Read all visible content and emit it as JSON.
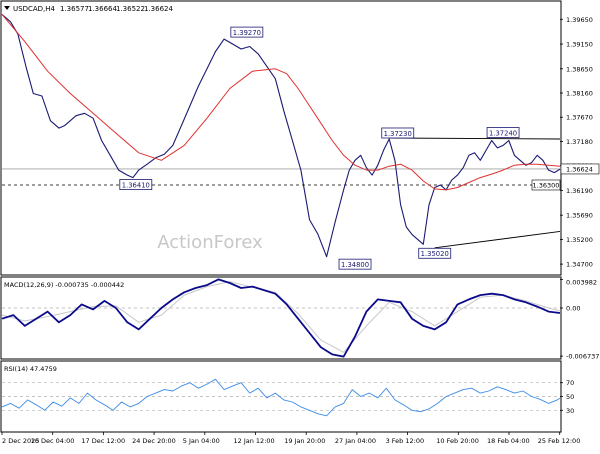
{
  "symbol_header": {
    "symbol": "USDCAD,H4",
    "open": "1.36577",
    "high": "1.36664",
    "low": "1.36522",
    "close": "1.36624"
  },
  "watermark": "ActionForex",
  "colors": {
    "price_line": "#1a1a73",
    "moving_average": "#e03030",
    "trendline": "#000000",
    "macd_line": "#0a0a8c",
    "macd_signal": "#c8c8c8",
    "rsi_line": "#3c8ce6",
    "current_price_line": "#a0a0a0",
    "support_line": "#000000",
    "label_box_border": "#1a1a73"
  },
  "chart_data": [
    {
      "type": "line",
      "panel": "price",
      "symbol": "USDCAD",
      "timeframe": "H4",
      "ylim": [
        1.345,
        1.4
      ],
      "y_ticks": [
        "1.39650",
        "1.39150",
        "1.38650",
        "1.38160",
        "1.37670",
        "1.37180",
        "1.36690",
        "1.36190",
        "1.35690",
        "1.35200",
        "1.34700"
      ],
      "current_price": "1.36624",
      "support_level": "1.36300",
      "x_ticks": [
        "2 Dec 2025",
        "10 Dec 04:00",
        "17 Dec 12:00",
        "24 Dec 20:00",
        "5 Jan 04:00",
        "12 Jan 12:00",
        "19 Jan 20:00",
        "27 Jan 04:00",
        "3 Feb 12:00",
        "10 Feb 20:00",
        "18 Feb 04:00",
        "25 Feb 12:00"
      ],
      "annotations": [
        {
          "text": "1.39270",
          "x": 43.0,
          "y": 1.3927
        },
        {
          "text": "1.36410",
          "x": 23.5,
          "y": 1.3641
        },
        {
          "text": "1.34800",
          "x": 62.0,
          "y": 1.348
        },
        {
          "text": "1.37230",
          "x": 69.5,
          "y": 1.3723
        },
        {
          "text": "1.35020",
          "x": 76.0,
          "y": 1.3502
        },
        {
          "text": "1.37240",
          "x": 88.0,
          "y": 1.3724
        }
      ],
      "series": [
        {
          "name": "USDCAD",
          "x": [
            0,
            1.5,
            2.8,
            4.2,
            5.5,
            7,
            8.5,
            10,
            11,
            12,
            13,
            14.5,
            16,
            17.5,
            19,
            20.5,
            22,
            23,
            24,
            25.5,
            27,
            28.5,
            30,
            31.5,
            33,
            34.5,
            36,
            37.5,
            39,
            40.5,
            42,
            43.5,
            45,
            46.5,
            48,
            49.5,
            51,
            52.5,
            54,
            55.5,
            57,
            58.5,
            60,
            61,
            62,
            63,
            64,
            65,
            66,
            67,
            68,
            69,
            70,
            71,
            72,
            73,
            74,
            75,
            76,
            77,
            78,
            79,
            80,
            81,
            82,
            83,
            84,
            85,
            86,
            87,
            88,
            89,
            90,
            91,
            92,
            93,
            94,
            95,
            96,
            97,
            98
          ],
          "values": [
            1.3975,
            1.396,
            1.3935,
            1.387,
            1.3815,
            1.381,
            1.376,
            1.3745,
            1.375,
            1.376,
            1.377,
            1.3775,
            1.3765,
            1.372,
            1.369,
            1.366,
            1.365,
            1.3645,
            1.366,
            1.3672,
            1.3685,
            1.3692,
            1.371,
            1.375,
            1.379,
            1.383,
            1.3865,
            1.39,
            1.3925,
            1.3915,
            1.3905,
            1.391,
            1.3895,
            1.387,
            1.3845,
            1.378,
            1.372,
            1.366,
            1.356,
            1.353,
            1.3485,
            1.3555,
            1.362,
            1.366,
            1.368,
            1.369,
            1.3665,
            1.365,
            1.367,
            1.37,
            1.3723,
            1.368,
            1.359,
            1.3545,
            1.353,
            1.352,
            1.351,
            1.359,
            1.3625,
            1.363,
            1.362,
            1.364,
            1.365,
            1.3665,
            1.369,
            1.3695,
            1.368,
            1.37,
            1.372,
            1.3705,
            1.371,
            1.372,
            1.369,
            1.368,
            1.367,
            1.3675,
            1.369,
            1.368,
            1.366,
            1.3655,
            1.3662
          ]
        },
        {
          "name": "Moving Average",
          "x": [
            0,
            4,
            8,
            12,
            16,
            20,
            24,
            28,
            32,
            36,
            40,
            44,
            48,
            50,
            52,
            54,
            56,
            58,
            60,
            62,
            64,
            66,
            68,
            70,
            72,
            74,
            76,
            78,
            80,
            82,
            84,
            86,
            88,
            90,
            92,
            94,
            96,
            98
          ],
          "values": [
            1.3975,
            1.392,
            1.386,
            1.3815,
            1.3775,
            1.3735,
            1.3695,
            1.368,
            1.371,
            1.3765,
            1.3825,
            1.386,
            1.3865,
            1.3855,
            1.3825,
            1.379,
            1.3755,
            1.372,
            1.369,
            1.367,
            1.366,
            1.366,
            1.3668,
            1.3672,
            1.366,
            1.3638,
            1.3622,
            1.362,
            1.3625,
            1.3635,
            1.3645,
            1.3652,
            1.366,
            1.367,
            1.3672,
            1.3672,
            1.367,
            1.3668
          ]
        }
      ],
      "trendlines": [
        {
          "from": {
            "x": 68.0,
            "y": 1.3725
          },
          "to": {
            "x": 98.0,
            "y": 1.3723
          }
        },
        {
          "from": {
            "x": 76.0,
            "y": 1.3503
          },
          "to": {
            "x": 98.0,
            "y": 1.3536
          }
        }
      ]
    },
    {
      "type": "line",
      "panel": "macd",
      "title": "MACD(12,26,9) -0.000735 -0.000442",
      "ylim": [
        -0.007,
        0.0042
      ],
      "y_ticks": [
        "0.003982",
        "0.00",
        "-0.006737"
      ],
      "series": [
        {
          "name": "MACD",
          "x": [
            0,
            2,
            4,
            6,
            8,
            10,
            12,
            14,
            16,
            18,
            20,
            22,
            24,
            26,
            28,
            30,
            32,
            34,
            36,
            38,
            40,
            42,
            44,
            46,
            48,
            50,
            52,
            54,
            56,
            58,
            60,
            62,
            64,
            66,
            68,
            70,
            72,
            74,
            76,
            78,
            80,
            82,
            84,
            86,
            88,
            90,
            92,
            94,
            96,
            98
          ],
          "values": [
            -0.0015,
            -0.001,
            -0.0025,
            -0.0015,
            -0.0005,
            -0.002,
            -0.001,
            0.0005,
            -0.0002,
            0.001,
            0.0,
            -0.002,
            -0.003,
            -0.0015,
            0.0,
            0.0012,
            0.0022,
            0.0028,
            0.0032,
            0.004,
            0.0035,
            0.0028,
            0.003,
            0.0025,
            0.002,
            0.0005,
            -0.0015,
            -0.0035,
            -0.0055,
            -0.0065,
            -0.0068,
            -0.004,
            -0.0005,
            0.0012,
            0.001,
            0.0008,
            -0.0015,
            -0.0025,
            -0.003,
            -0.002,
            0.0005,
            0.0012,
            0.0018,
            0.002,
            0.0018,
            0.0012,
            0.0008,
            0.0002,
            -0.0005,
            -0.0007
          ]
        },
        {
          "name": "Signal",
          "x": [
            0,
            4,
            8,
            12,
            16,
            20,
            24,
            28,
            32,
            36,
            40,
            44,
            48,
            52,
            56,
            60,
            64,
            68,
            72,
            76,
            80,
            84,
            88,
            92,
            96,
            98
          ],
          "values": [
            -0.001,
            -0.0018,
            -0.0012,
            -0.0005,
            0.0002,
            0.0003,
            -0.002,
            -0.001,
            0.0018,
            0.003,
            0.0037,
            0.0029,
            0.0022,
            -0.0008,
            -0.0045,
            -0.0062,
            -0.0025,
            0.0008,
            -0.0005,
            -0.0025,
            -0.0005,
            0.0015,
            0.0018,
            0.001,
            0.0,
            -0.0004
          ]
        }
      ]
    },
    {
      "type": "line",
      "panel": "rsi",
      "title": "RSI(14) 47.4759",
      "ylim": [
        0,
        100
      ],
      "y_ticks": [
        "70",
        "50",
        "30"
      ],
      "series": [
        {
          "name": "RSI",
          "x": [
            0,
            1.5,
            3,
            4.5,
            6,
            7.5,
            9,
            10.5,
            12,
            13.5,
            15,
            16.5,
            18,
            19.5,
            21,
            22.5,
            24,
            25.5,
            27,
            28.5,
            30,
            31.5,
            33,
            34.5,
            36,
            37.5,
            39,
            40.5,
            42,
            43.5,
            45,
            46.5,
            48,
            49.5,
            51,
            52.5,
            54,
            55.5,
            57,
            58.5,
            60,
            61.5,
            63,
            64.5,
            66,
            67.5,
            69,
            70.5,
            72,
            73.5,
            75,
            76.5,
            78,
            79.5,
            81,
            82.5,
            84,
            85.5,
            87,
            88.5,
            90,
            91.5,
            93,
            94.5,
            96,
            97.5,
            98
          ],
          "values": [
            35,
            40,
            33,
            45,
            38,
            30,
            42,
            36,
            48,
            40,
            55,
            45,
            38,
            30,
            42,
            35,
            40,
            50,
            55,
            60,
            58,
            65,
            70,
            62,
            68,
            75,
            60,
            65,
            70,
            55,
            62,
            48,
            55,
            45,
            42,
            35,
            30,
            25,
            22,
            35,
            40,
            60,
            50,
            55,
            48,
            62,
            45,
            38,
            30,
            28,
            32,
            40,
            50,
            55,
            60,
            62,
            55,
            58,
            64,
            60,
            55,
            58,
            50,
            46,
            40,
            45,
            47.5
          ]
        }
      ]
    }
  ]
}
